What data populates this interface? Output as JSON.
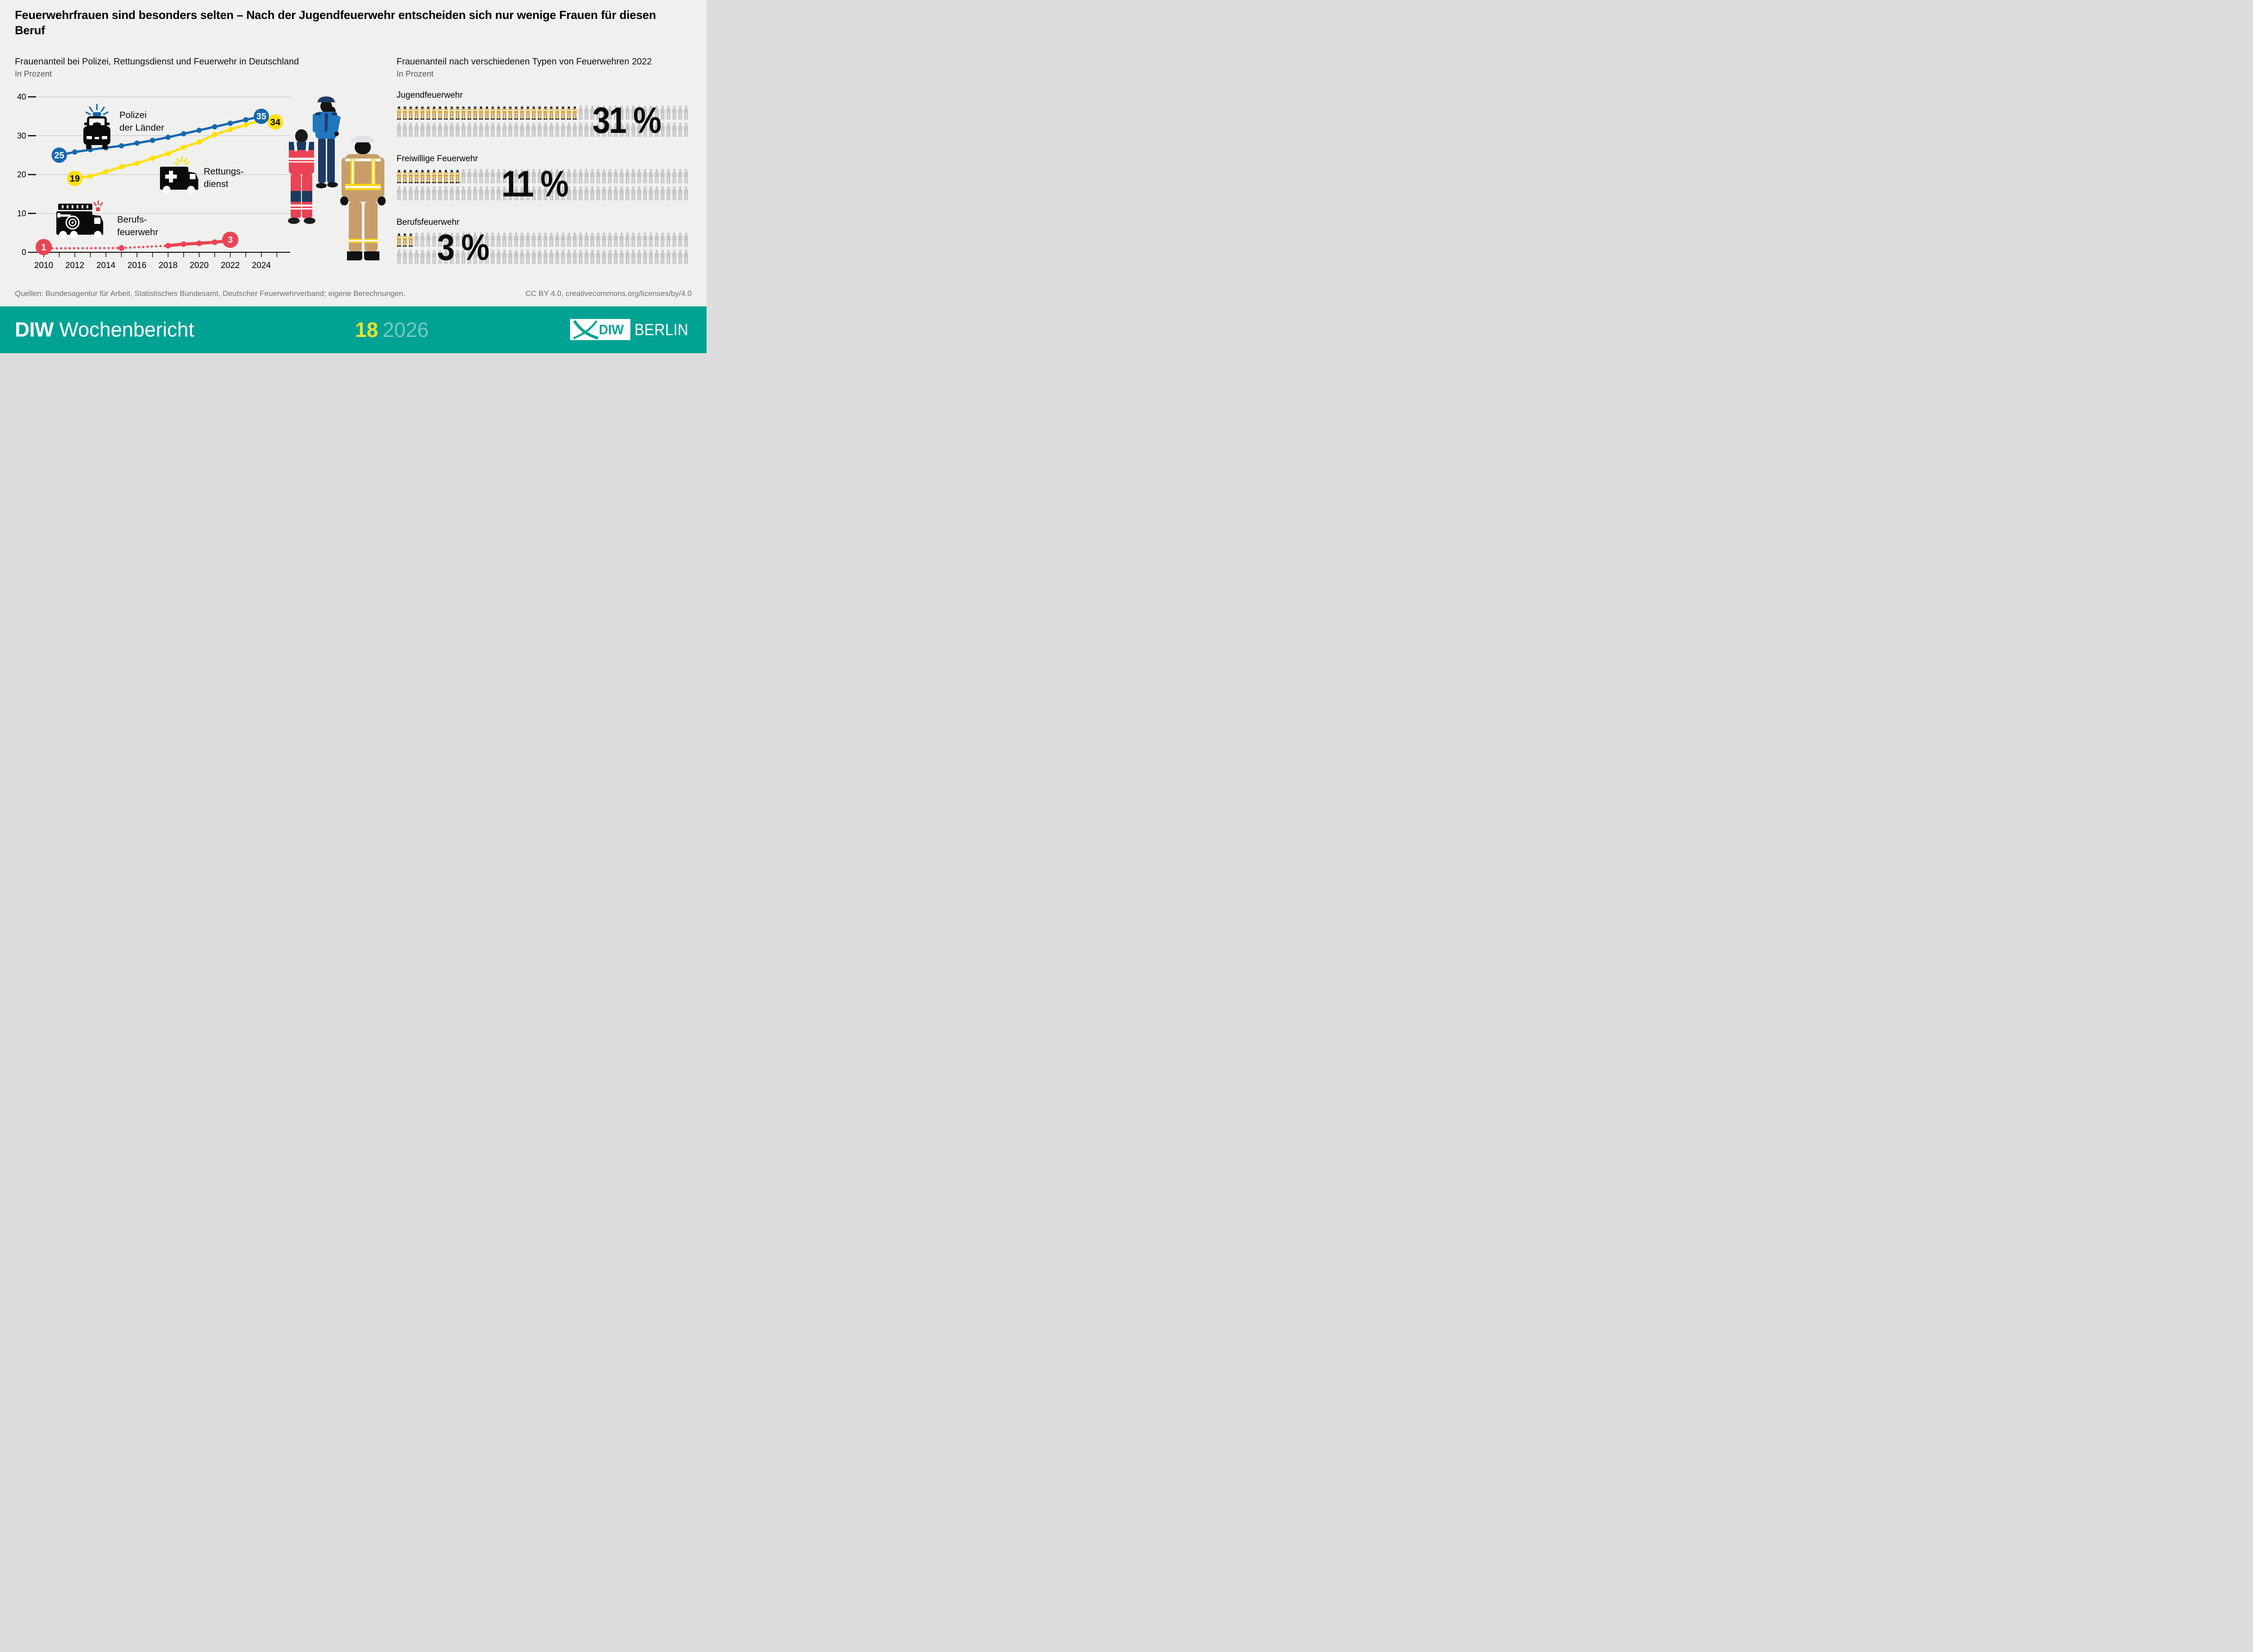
{
  "headline": "Feuerwehrfrauen sind besonders selten – Nach der Jugendfeuerwehr entscheiden sich nur wenige Frauen für diesen Beruf",
  "footnote": {
    "sources": "Quellen: Bundesagentur für Arbeit, Statistisches Bundesamt, Deutscher Feuerwehrverband; eigene Berechnungen.",
    "license": "CC BY 4.0, creativecommons.org/licenses/by/4.0"
  },
  "footer": {
    "brand_bold": "DIW",
    "brand_rest": "Wochenbericht",
    "issue": "18",
    "year": "2026",
    "logo_text": "DIW",
    "logo_city": "BERLIN"
  },
  "colors": {
    "background": "#f0f0ef",
    "blue": "#1568ae",
    "yellow": "#ffe100",
    "red": "#e94455",
    "teal": "#00a294",
    "issue_yellow": "#e3e232",
    "year_teal": "#74cabf",
    "grid": "#cccccc",
    "grey_icon": "#c6c6c6",
    "suit_tan": "#c79e6b",
    "stripe_yellow": "#ffd60a",
    "text_grey": "#6f6f6f"
  },
  "chart_data": [
    {
      "type": "line",
      "title": "Frauenanteil bei Polizei, Rettungsdienst und Feuerwehr in Deutschland",
      "subtitle": "In Prozent",
      "xlabel": "",
      "ylabel": "In Prozent",
      "ylim": [
        0,
        40
      ],
      "yticks": [
        0,
        10,
        20,
        30,
        40
      ],
      "xticks": [
        2010,
        2012,
        2014,
        2016,
        2018,
        2020,
        2022,
        2024
      ],
      "xtick_minor_range": [
        2010,
        2025
      ],
      "grid": true,
      "legend_position": "inside-labels",
      "series": [
        {
          "name": "Rettungsdienst",
          "label_lines": [
            "Rettungs-",
            "dienst"
          ],
          "icon": "ambulance-icon",
          "color": "#ffe100",
          "label_text_color": "#000000",
          "x": [
            2012,
            2013,
            2014,
            2015,
            2016,
            2017,
            2018,
            2019,
            2020,
            2021,
            2022,
            2023,
            2024
          ],
          "values": [
            19,
            19.6,
            20.7,
            22,
            22.9,
            24.2,
            25.4,
            27,
            28.4,
            30.3,
            31.6,
            32.8,
            34
          ],
          "start_label": "19",
          "end_label": "34"
        },
        {
          "name": "Polizei der Länder",
          "label_lines": [
            "Polizei",
            "der Länder"
          ],
          "icon": "police-car-icon",
          "color": "#1568ae",
          "label_text_color": "#ffffff",
          "x": [
            2011,
            2012,
            2013,
            2014,
            2015,
            2016,
            2017,
            2018,
            2019,
            2020,
            2021,
            2022,
            2023,
            2024
          ],
          "values": [
            25,
            25.8,
            26.4,
            26.9,
            27.4,
            28.1,
            28.8,
            29.6,
            30.5,
            31.4,
            32.3,
            33.2,
            34.1,
            35
          ],
          "start_label": "25",
          "end_label": "35"
        },
        {
          "name": "Berufsfeuerwehr",
          "label_lines": [
            "Berufs-",
            "feuerwehr"
          ],
          "icon": "fire-truck-icon",
          "color": "#e94455",
          "label_text_color": "#ffffff",
          "x": [
            2010,
            2015,
            2018,
            2019,
            2020,
            2021,
            2022
          ],
          "values": [
            1,
            1.1,
            1.7,
            2.1,
            2.3,
            2.6,
            3
          ],
          "dotted_until": 2018,
          "start_label": "1",
          "end_label": "3"
        }
      ]
    },
    {
      "type": "pictogram",
      "title": "Frauenanteil nach verschiedenen Typen von Feuerwehren 2022",
      "subtitle": "In Prozent",
      "total_icons": 100,
      "icons_per_row": 50,
      "rows": 2,
      "groups": [
        {
          "label": "Jugendfeuerwehr",
          "value": 31,
          "display": "31 %"
        },
        {
          "label": "Freiwillige Feuerwehr",
          "value": 11,
          "display": "11 %"
        },
        {
          "label": "Berufsfeuerwehr",
          "value": 3,
          "display": "3 %"
        }
      ]
    }
  ]
}
